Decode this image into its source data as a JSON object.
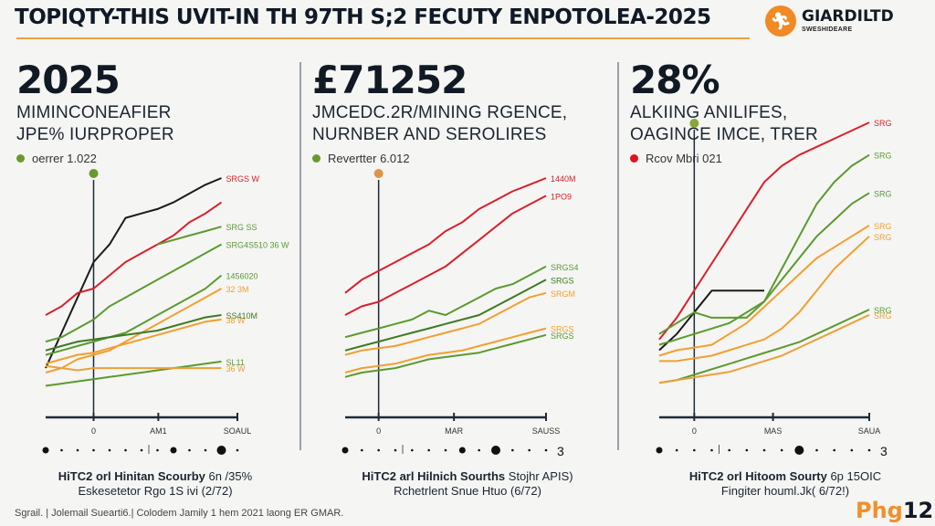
{
  "header": {
    "title": "TOPIQTY-THIS UVIT-IN TH 97TH S;2 FECUTY ENPOTOLEA-2025",
    "logo": {
      "icon": "runner-icon",
      "name": "GIARDILTD",
      "sub": "SWESHIDEARE",
      "accent": "#f08a24"
    }
  },
  "colors": {
    "red": "#d8202c",
    "black": "#1b1b1b",
    "green": "#5b9a2e",
    "dark_green": "#3e7a22",
    "orange": "#f0a030",
    "axis": "#1f2a36"
  },
  "panels": [
    {
      "big_number": "2025",
      "subtitle_line1": "MIMINCONEAFIER",
      "subtitle_line2": "JPE% IURPROPER",
      "legend": {
        "label": "oerrer 1.022",
        "color": "#6a9a2e"
      },
      "marker_color": "#6a9a2e",
      "caption_bold": "HiTC2 orl Hinitan Scourby",
      "caption_rest": " 6n /35%",
      "caption_line2": "Eskesetetor Rgo 1S ivi (2/72)"
    },
    {
      "big_number": "£71252",
      "subtitle_line1": "JMCEDC.2R/MINING RGENCE,",
      "subtitle_line2": "NURNBER AND SEROLIRES",
      "legend": {
        "label": "Revertter 6.012",
        "color": "#6a9a2e"
      },
      "marker_color": "#e0924a",
      "caption_bold": "HiTC2 arl Hilnich Sourths",
      "caption_rest": " Stojhr APIS)",
      "caption_line2": "Rchetrlent Snue Htuo (6/72)"
    },
    {
      "big_number": "28%",
      "subtitle_line1": "ALKIING ANILIFES,",
      "subtitle_line2": "OAGINCE IMCE, TRER",
      "legend": {
        "label": "Rcov Mbri 021",
        "color": "#e0101c"
      },
      "marker_color": "#8aa83a",
      "caption_bold": "HiTC2 orl Hitoom Sourty",
      "caption_rest": " 6p 15OIC",
      "caption_line2": "Fingiter houml.Jk( 6/72!)"
    }
  ],
  "chart_data": [
    {
      "type": "line",
      "title": "2025",
      "x_ticks": [
        "0",
        "AM1",
        "SOAUL"
      ],
      "ylim": [
        0,
        100
      ],
      "x": [
        0,
        1,
        2,
        3,
        4,
        5,
        6,
        7,
        8,
        9,
        10,
        11,
        12
      ],
      "marker_x": 3,
      "pager": {
        "dots": 13,
        "active": [
          0,
          8,
          11
        ],
        "divider_after": 6,
        "end_label": ""
      },
      "series": [
        {
          "name": "black",
          "color": "#1b1b1b",
          "values": [
            14,
            30,
            46,
            62,
            70,
            82,
            84,
            86,
            89,
            93,
            97,
            100,
            null
          ],
          "label": ""
        },
        {
          "name": "red-top",
          "color": "#d8202c",
          "values": [
            null,
            null,
            null,
            null,
            null,
            null,
            null,
            null,
            null,
            null,
            null,
            100,
            null
          ],
          "label": "SRGS W"
        },
        {
          "name": "red",
          "color": "#d8202c",
          "values": [
            38,
            42,
            48,
            50,
            56,
            62,
            66,
            70,
            74,
            80,
            84,
            89,
            null
          ],
          "label": ""
        },
        {
          "name": "green-1",
          "color": "#5b9a2e",
          "values": [
            null,
            null,
            null,
            null,
            null,
            null,
            null,
            70,
            72,
            74,
            76,
            78,
            null
          ],
          "label": "SRG SS"
        },
        {
          "name": "green-2",
          "color": "#5b9a2e",
          "values": [
            26,
            28,
            32,
            36,
            42,
            46,
            50,
            54,
            58,
            62,
            66,
            70,
            null
          ],
          "label": "SRG4S510 36 W"
        },
        {
          "name": "green-3",
          "color": "#5b9a2e",
          "values": [
            20,
            22,
            24,
            26,
            28,
            30,
            34,
            38,
            42,
            46,
            50,
            56,
            null
          ],
          "label": "1456020"
        },
        {
          "name": "orange-1",
          "color": "#f0a030",
          "values": [
            12,
            14,
            18,
            20,
            22,
            26,
            30,
            34,
            38,
            42,
            46,
            50,
            null
          ],
          "label": "32 3M"
        },
        {
          "name": "dark-green",
          "color": "#3e7a22",
          "values": [
            22,
            24,
            26,
            27,
            28,
            29,
            30,
            31,
            33,
            35,
            37,
            38,
            null
          ],
          "label": "SS410M"
        },
        {
          "name": "orange-2",
          "color": "#f0a030",
          "values": [
            16,
            18,
            20,
            21,
            23,
            25,
            27,
            29,
            31,
            33,
            35,
            36,
            null
          ],
          "label": "38 W"
        },
        {
          "name": "green-4",
          "color": "#5b9a2e",
          "values": [
            6,
            7,
            8,
            9,
            10,
            11,
            12,
            13,
            14,
            15,
            16,
            17,
            null
          ],
          "label": "SL11"
        },
        {
          "name": "orange-3",
          "color": "#e8a23a",
          "values": [
            15,
            14,
            13,
            14,
            14,
            14,
            14,
            14,
            14,
            14,
            14,
            14,
            null
          ],
          "label": "36 W"
        }
      ]
    },
    {
      "type": "line",
      "title": "£71252",
      "x_ticks": [
        "0",
        "MAR",
        "SAUSS"
      ],
      "ylim": [
        0,
        100
      ],
      "x": [
        0,
        1,
        2,
        3,
        4,
        5,
        6,
        7,
        8,
        9,
        10,
        11,
        12
      ],
      "marker_x": 2,
      "pager": {
        "dots": 13,
        "active": [
          0,
          7,
          9
        ],
        "divider_after": 3,
        "end_label": "3"
      },
      "series": [
        {
          "name": "red-1",
          "color": "#d8202c",
          "values": [
            48,
            54,
            58,
            62,
            66,
            70,
            76,
            80,
            86,
            90,
            94,
            97,
            100
          ],
          "label": "1440M"
        },
        {
          "name": "red-2",
          "color": "#d8202c",
          "values": [
            38,
            42,
            44,
            48,
            52,
            56,
            60,
            66,
            72,
            78,
            84,
            88,
            92
          ],
          "label": "1PO9"
        },
        {
          "name": "green-1",
          "color": "#5b9a2e",
          "values": [
            28,
            30,
            32,
            34,
            36,
            40,
            38,
            42,
            46,
            50,
            52,
            56,
            60
          ],
          "label": "SRGS4"
        },
        {
          "name": "dark-green",
          "color": "#3e7a22",
          "values": [
            22,
            24,
            26,
            28,
            30,
            32,
            34,
            36,
            38,
            42,
            46,
            50,
            54
          ],
          "label": "SRGS"
        },
        {
          "name": "orange-1",
          "color": "#f0a030",
          "values": [
            20,
            22,
            23,
            24,
            26,
            28,
            30,
            32,
            34,
            38,
            42,
            46,
            48
          ],
          "label": "SRGM"
        },
        {
          "name": "orange-2",
          "color": "#f0a030",
          "values": [
            12,
            14,
            15,
            16,
            18,
            20,
            21,
            22,
            24,
            26,
            28,
            30,
            32
          ],
          "label": "SRGS"
        },
        {
          "name": "green-2",
          "color": "#5b9a2e",
          "values": [
            10,
            12,
            13,
            14,
            16,
            18,
            19,
            20,
            21,
            23,
            25,
            27,
            29
          ],
          "label": "SRGS"
        }
      ]
    },
    {
      "type": "line",
      "title": "28%",
      "x_ticks": [
        "0",
        "MAS",
        "SAUA"
      ],
      "ylim": [
        0,
        100
      ],
      "x": [
        0,
        1,
        2,
        3,
        4,
        5,
        6,
        7,
        8,
        9,
        10,
        11,
        12
      ],
      "marker_x": 2,
      "pager": {
        "dots": 13,
        "active": [
          0,
          8
        ],
        "divider_after": 3,
        "end_label": "3"
      },
      "series": [
        {
          "name": "red",
          "color": "#d8202c",
          "values": [
            22,
            30,
            40,
            50,
            60,
            70,
            80,
            86,
            90,
            93,
            96,
            99,
            102
          ],
          "label": "SRG"
        },
        {
          "name": "black",
          "color": "#1b1b1b",
          "values": [
            18,
            24,
            32,
            40,
            40,
            40,
            40,
            null,
            null,
            null,
            null,
            null,
            null
          ],
          "label": ""
        },
        {
          "name": "green-1",
          "color": "#5b9a2e",
          "values": [
            24,
            28,
            32,
            30,
            30,
            30,
            36,
            48,
            60,
            72,
            80,
            86,
            90
          ],
          "label": "SRG"
        },
        {
          "name": "green-2",
          "color": "#5b9a2e",
          "values": [
            20,
            22,
            24,
            26,
            28,
            32,
            36,
            44,
            52,
            60,
            66,
            72,
            76
          ],
          "label": "SRG"
        },
        {
          "name": "orange-1",
          "color": "#f0a030",
          "values": [
            16,
            18,
            19,
            20,
            24,
            28,
            34,
            40,
            46,
            52,
            56,
            60,
            64
          ],
          "label": "SRG"
        },
        {
          "name": "orange-2",
          "color": "#f0a030",
          "values": [
            14,
            14,
            15,
            16,
            18,
            20,
            22,
            26,
            32,
            40,
            48,
            54,
            60
          ],
          "label": "SRG"
        },
        {
          "name": "green-3",
          "color": "#5b9a2e",
          "values": [
            6,
            7,
            9,
            11,
            13,
            15,
            17,
            19,
            21,
            24,
            27,
            30,
            33
          ],
          "label": "SRG"
        },
        {
          "name": "orange-3",
          "color": "#e8a23a",
          "values": [
            6,
            7,
            8,
            9,
            10,
            12,
            14,
            16,
            19,
            22,
            25,
            28,
            31
          ],
          "label": "SRG"
        }
      ]
    }
  ],
  "footer": {
    "source": "Sgrail. | Jolemail Suearti6.| Colodem Jamily 1 hem 2021 laong ER GMAR.",
    "badge_part1": "Phg",
    "badge_part2": "12"
  }
}
